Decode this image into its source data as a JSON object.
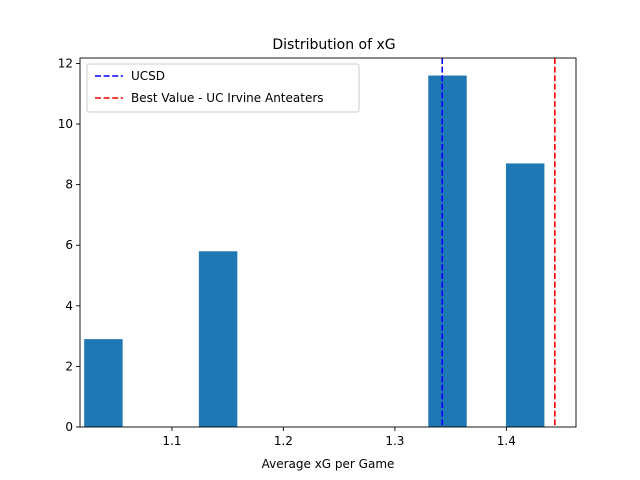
{
  "chart_data": {
    "type": "bar",
    "title": "Distribution of xG",
    "xlabel": "Average xG per Game",
    "ylabel": "",
    "xlim": [
      1.0175,
      1.4625
    ],
    "ylim": [
      0,
      12.18
    ],
    "xticks": [
      1.1,
      1.2,
      1.3,
      1.4
    ],
    "xtick_labels": [
      "1.1",
      "1.2",
      "1.3",
      "1.4"
    ],
    "yticks": [
      0,
      2,
      4,
      6,
      8,
      10,
      12
    ],
    "ytick_labels": [
      "0",
      "2",
      "4",
      "6",
      "8",
      "10",
      "12"
    ],
    "bar_width": 0.0345,
    "bars": [
      {
        "x": 1.0385,
        "value": 2.9
      },
      {
        "x": 1.1414,
        "value": 5.8
      },
      {
        "x": 1.3472,
        "value": 11.6
      },
      {
        "x": 1.4169,
        "value": 8.7
      }
    ],
    "bar_color": "#1f77b4",
    "reference_lines": [
      {
        "name": "UCSD",
        "x": 1.3425,
        "color": "#0000ff",
        "style": "dashed"
      },
      {
        "name": "Best Value - UC Irvine Anteaters",
        "x": 1.4435,
        "color": "#ff0000",
        "style": "dashed"
      }
    ],
    "legend": {
      "placement": "top-left",
      "entries": [
        "UCSD",
        "Best Value - UC Irvine Anteaters"
      ]
    },
    "grid": false
  }
}
